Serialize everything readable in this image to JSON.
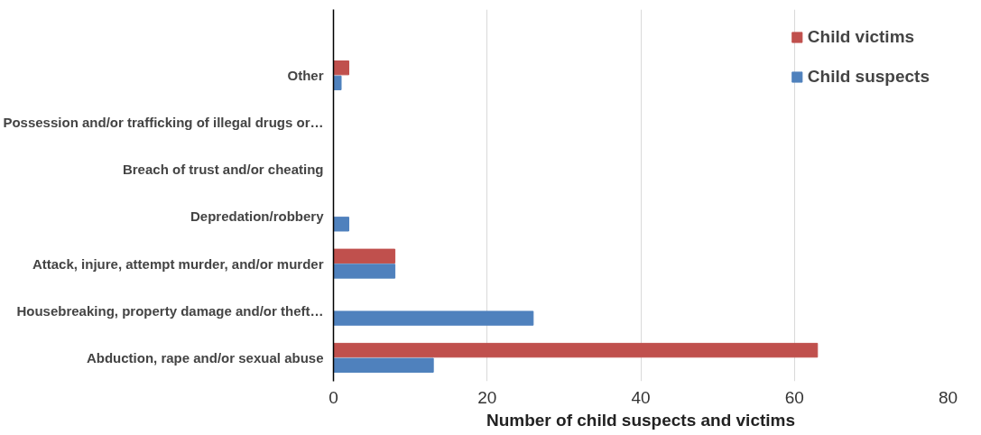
{
  "chart_data": {
    "type": "bar",
    "orientation": "horizontal",
    "xlabel": "Number of child suspects and victims",
    "categories": [
      "Other",
      "Possession and/or trafficking of illegal drugs or…",
      "Breach of trust and/or cheating",
      "Depredation/robbery",
      "Attack, injure, attempt murder, and/or murder",
      "Housebreaking, property damage and/or theft…",
      "Abduction, rape and/or sexual abuse"
    ],
    "series": [
      {
        "name": "Child victims",
        "color": "#c0504d",
        "values": [
          2,
          0,
          0,
          0,
          8,
          0,
          63
        ]
      },
      {
        "name": "Child suspects",
        "color": "#4f81bd",
        "values": [
          1,
          0,
          0,
          2,
          8,
          26,
          13
        ]
      }
    ],
    "xlim": [
      0,
      80
    ],
    "xticks": [
      0,
      20,
      40,
      60,
      80
    ],
    "grid": "x",
    "legend": "top right"
  }
}
